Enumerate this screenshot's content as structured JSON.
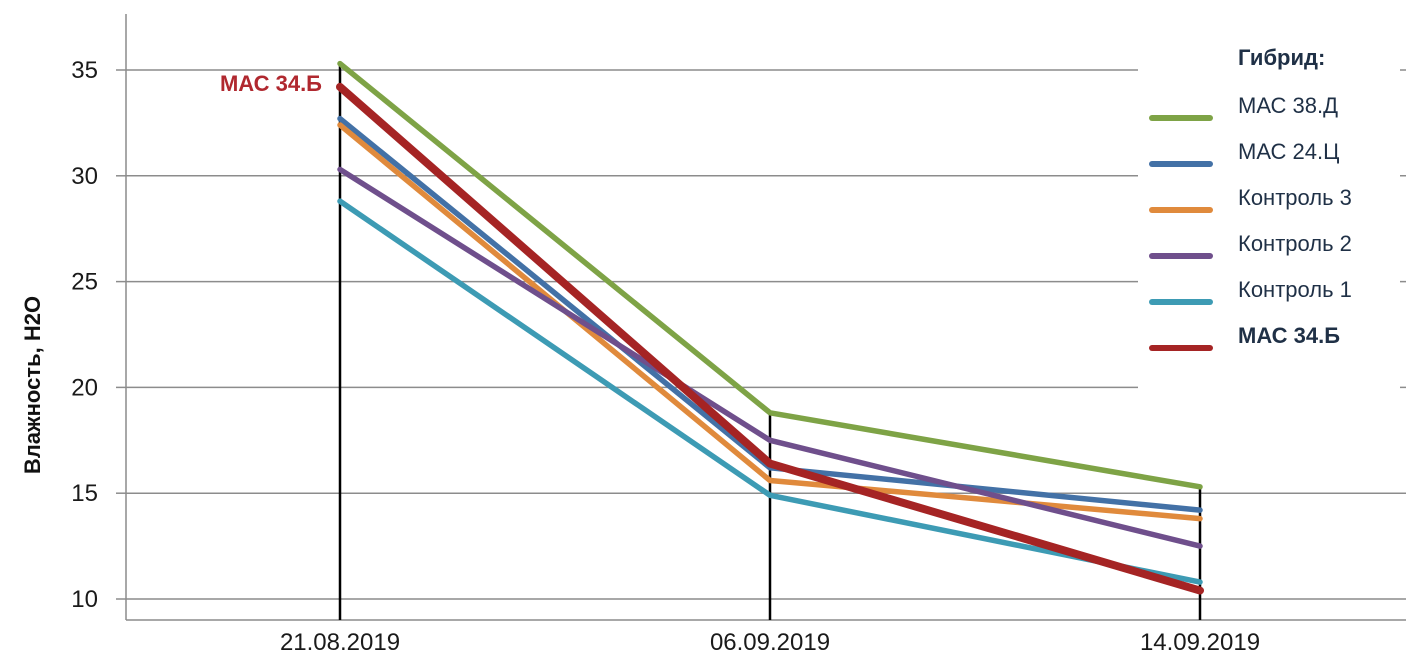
{
  "chart_data": {
    "type": "line",
    "title": "",
    "xlabel": "",
    "ylabel": "Влажность, H2O",
    "categories": [
      "21.08.2019",
      "06.09.2019",
      "14.09.2019"
    ],
    "ylim": [
      10,
      35
    ],
    "yticks": [
      10,
      15,
      20,
      25,
      30,
      35
    ],
    "grid": true,
    "legend": {
      "title": "Гибрид:",
      "placement": "top-right"
    },
    "series": [
      {
        "name": "МАС 38.Д",
        "values": [
          35.3,
          18.8,
          15.3
        ],
        "color": "#7ea346",
        "bold": false
      },
      {
        "name": "МАС 24.Ц",
        "values": [
          32.7,
          16.2,
          14.2
        ],
        "color": "#4371a6",
        "bold": false
      },
      {
        "name": "Контроль 3",
        "values": [
          32.4,
          15.6,
          13.8
        ],
        "color": "#e08a3c",
        "bold": false
      },
      {
        "name": "Контроль 2",
        "values": [
          30.3,
          17.5,
          12.5
        ],
        "color": "#6f4f8c",
        "bold": false
      },
      {
        "name": "Контроль 1",
        "values": [
          28.8,
          14.9,
          10.8
        ],
        "color": "#3d9bb4",
        "bold": false
      },
      {
        "name": "МАС 34.Б",
        "values": [
          34.2,
          16.4,
          10.4
        ],
        "color": "#a52424",
        "bold": true
      }
    ],
    "annotations": [
      {
        "text": "МАС 34.Б",
        "series": "МАС 34.Б",
        "category": "21.08.2019",
        "color": "#b0282f"
      }
    ]
  }
}
